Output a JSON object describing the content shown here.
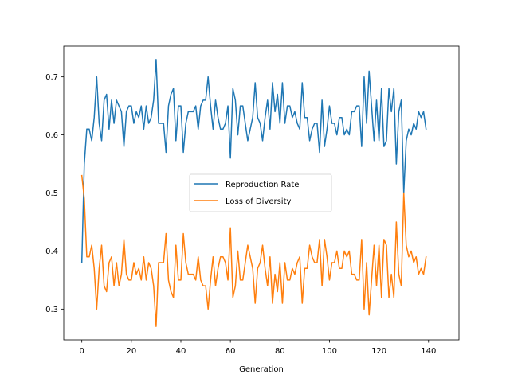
{
  "chart_data": {
    "type": "line",
    "title": "",
    "xlabel": "Generation",
    "ylabel": "",
    "xlim": [
      -7.3,
      152.3
    ],
    "ylim": [
      0.247,
      0.753
    ],
    "x_ticks": [
      0,
      20,
      40,
      60,
      80,
      100,
      120,
      140
    ],
    "y_ticks": [
      0.3,
      0.4,
      0.5,
      0.6,
      0.7
    ],
    "x_tick_labels": [
      "0",
      "20",
      "40",
      "60",
      "80",
      "100",
      "120",
      "140"
    ],
    "y_tick_labels": [
      "0.3",
      "0.4",
      "0.5",
      "0.6",
      "0.7"
    ],
    "grid": false,
    "legend_placement": "center",
    "x_start": 0,
    "x_step": 1,
    "series": [
      {
        "name": "Reproduction Rate",
        "color": "#1f77b4",
        "values": [
          0.38,
          0.55,
          0.61,
          0.61,
          0.59,
          0.63,
          0.7,
          0.62,
          0.59,
          0.66,
          0.67,
          0.61,
          0.66,
          0.62,
          0.66,
          0.65,
          0.64,
          0.58,
          0.64,
          0.65,
          0.65,
          0.62,
          0.64,
          0.63,
          0.65,
          0.61,
          0.65,
          0.62,
          0.63,
          0.66,
          0.73,
          0.62,
          0.62,
          0.62,
          0.57,
          0.65,
          0.67,
          0.68,
          0.59,
          0.65,
          0.65,
          0.57,
          0.62,
          0.64,
          0.64,
          0.64,
          0.65,
          0.61,
          0.65,
          0.66,
          0.66,
          0.7,
          0.65,
          0.61,
          0.66,
          0.63,
          0.61,
          0.61,
          0.62,
          0.65,
          0.56,
          0.68,
          0.66,
          0.6,
          0.65,
          0.65,
          0.62,
          0.59,
          0.61,
          0.63,
          0.69,
          0.63,
          0.62,
          0.59,
          0.63,
          0.66,
          0.61,
          0.69,
          0.64,
          0.67,
          0.62,
          0.69,
          0.62,
          0.65,
          0.65,
          0.63,
          0.64,
          0.62,
          0.61,
          0.69,
          0.63,
          0.63,
          0.59,
          0.61,
          0.62,
          0.62,
          0.57,
          0.66,
          0.58,
          0.61,
          0.65,
          0.62,
          0.62,
          0.6,
          0.63,
          0.63,
          0.6,
          0.61,
          0.6,
          0.64,
          0.64,
          0.65,
          0.65,
          0.58,
          0.7,
          0.62,
          0.71,
          0.65,
          0.59,
          0.66,
          0.59,
          0.68,
          0.58,
          0.59,
          0.68,
          0.64,
          0.68,
          0.55,
          0.64,
          0.66,
          0.5,
          0.59,
          0.61,
          0.6,
          0.62,
          0.61,
          0.64,
          0.63,
          0.64,
          0.61
        ]
      },
      {
        "name": "Loss of Diversity",
        "color": "#ff7f0e",
        "values": [
          0.53,
          0.49,
          0.39,
          0.39,
          0.41,
          0.37,
          0.3,
          0.37,
          0.41,
          0.34,
          0.33,
          0.38,
          0.39,
          0.34,
          0.38,
          0.34,
          0.36,
          0.42,
          0.36,
          0.35,
          0.35,
          0.38,
          0.36,
          0.37,
          0.35,
          0.39,
          0.35,
          0.38,
          0.37,
          0.34,
          0.27,
          0.38,
          0.38,
          0.38,
          0.43,
          0.35,
          0.33,
          0.32,
          0.41,
          0.35,
          0.35,
          0.43,
          0.38,
          0.36,
          0.36,
          0.36,
          0.35,
          0.39,
          0.35,
          0.34,
          0.34,
          0.3,
          0.35,
          0.39,
          0.34,
          0.37,
          0.39,
          0.39,
          0.38,
          0.35,
          0.44,
          0.32,
          0.34,
          0.4,
          0.35,
          0.35,
          0.38,
          0.41,
          0.39,
          0.37,
          0.31,
          0.37,
          0.38,
          0.41,
          0.37,
          0.34,
          0.39,
          0.31,
          0.36,
          0.33,
          0.38,
          0.31,
          0.38,
          0.35,
          0.35,
          0.37,
          0.36,
          0.38,
          0.39,
          0.31,
          0.37,
          0.37,
          0.41,
          0.39,
          0.38,
          0.38,
          0.42,
          0.34,
          0.42,
          0.39,
          0.35,
          0.38,
          0.38,
          0.4,
          0.37,
          0.37,
          0.4,
          0.39,
          0.4,
          0.36,
          0.36,
          0.35,
          0.35,
          0.42,
          0.3,
          0.38,
          0.29,
          0.35,
          0.41,
          0.34,
          0.41,
          0.32,
          0.42,
          0.41,
          0.32,
          0.36,
          0.32,
          0.45,
          0.36,
          0.34,
          0.5,
          0.41,
          0.39,
          0.4,
          0.38,
          0.39,
          0.36,
          0.37,
          0.36,
          0.39
        ]
      }
    ]
  }
}
